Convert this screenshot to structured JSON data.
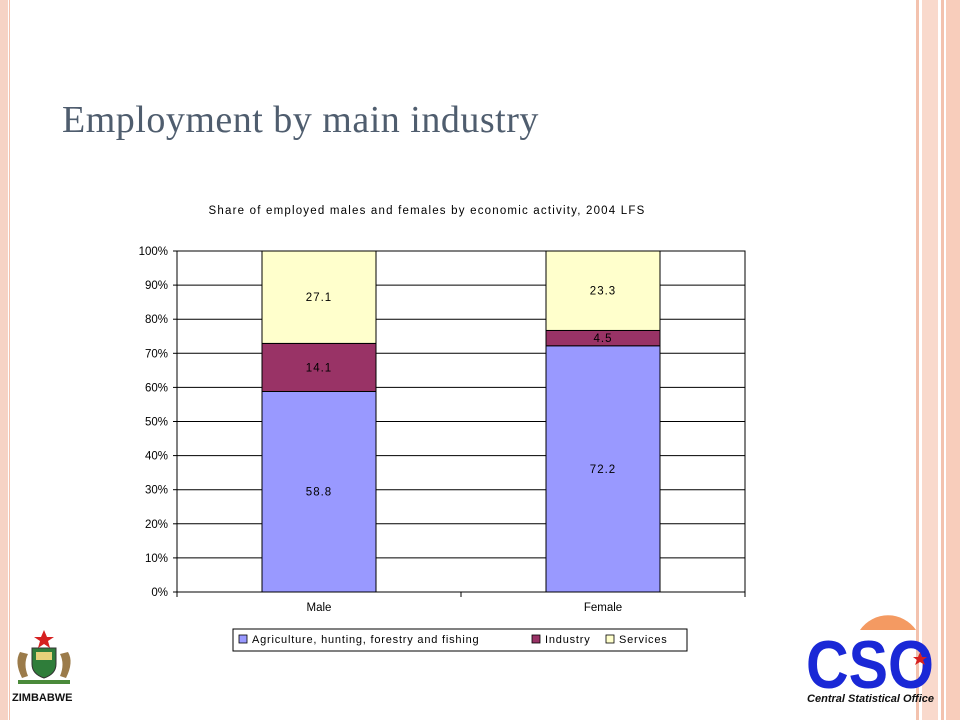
{
  "slide": {
    "title": "Employment by main industry"
  },
  "chart_data": {
    "type": "bar",
    "stacked": true,
    "percent_stacked": true,
    "title": "Share of employed males and females by economic activity, 2004 LFS",
    "categories": [
      "Male",
      "Female"
    ],
    "series": [
      {
        "name": "Agriculture, hunting, forestry and fishing",
        "values": [
          58.8,
          72.2
        ],
        "labels": [
          "58.8",
          "72.2"
        ],
        "color": "#9999ff"
      },
      {
        "name": "Industry",
        "values": [
          14.1,
          4.5
        ],
        "labels": [
          "14.1",
          "4.5"
        ],
        "color": "#993366"
      },
      {
        "name": "Services",
        "values": [
          27.1,
          23.3
        ],
        "labels": [
          "27.1",
          "23.3"
        ],
        "color": "#ffffcc"
      }
    ],
    "ylim": [
      0,
      100
    ],
    "yticks": [
      "0%",
      "10%",
      "20%",
      "30%",
      "40%",
      "50%",
      "60%",
      "70%",
      "80%",
      "90%",
      "100%"
    ],
    "grid": true,
    "legend": "bottom"
  },
  "logos": {
    "left_label": "ZIMBABWE",
    "right_text": "CSO",
    "right_label": "Central Statistical Office"
  },
  "colors": {
    "title": "#4f5d6e",
    "border": "#f6d3c5",
    "cso_blue": "#1a28d6",
    "cso_orange": "#f49a62"
  }
}
